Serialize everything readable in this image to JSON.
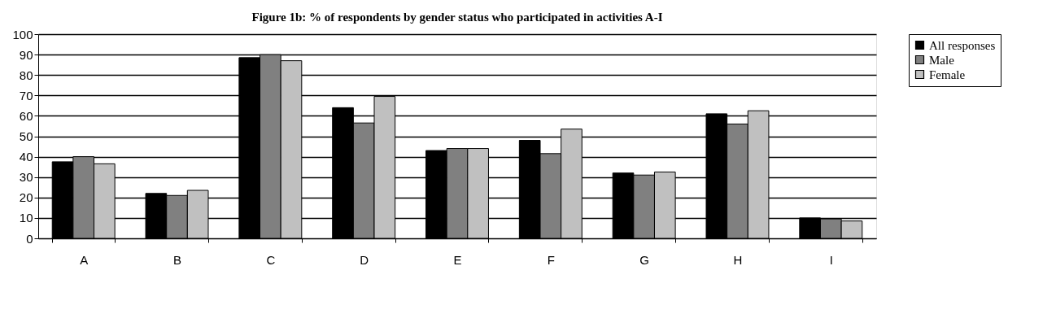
{
  "chart_data": {
    "type": "bar",
    "title": "Figure 1b: % of respondents by gender status who participated in activities A-I",
    "categories": [
      "A",
      "B",
      "C",
      "D",
      "E",
      "F",
      "G",
      "H",
      "I"
    ],
    "series": [
      {
        "name": "All responses",
        "color": "#000000",
        "values": [
          37.5,
          22,
          88.5,
          64,
          43,
          48,
          32,
          61,
          10
        ]
      },
      {
        "name": "Male",
        "color": "#808080",
        "values": [
          40,
          21,
          90,
          56.5,
          44,
          41.5,
          31,
          56,
          9.5
        ]
      },
      {
        "name": "Female",
        "color": "#c0c0c0",
        "values": [
          36.5,
          23.5,
          87,
          69.5,
          44,
          53.5,
          32.5,
          62.5,
          8.5
        ]
      }
    ],
    "ylim": [
      0,
      100
    ],
    "yticks": [
      0,
      10,
      20,
      30,
      40,
      50,
      60,
      70,
      80,
      90,
      100
    ],
    "grid": "y",
    "legend": "right"
  }
}
